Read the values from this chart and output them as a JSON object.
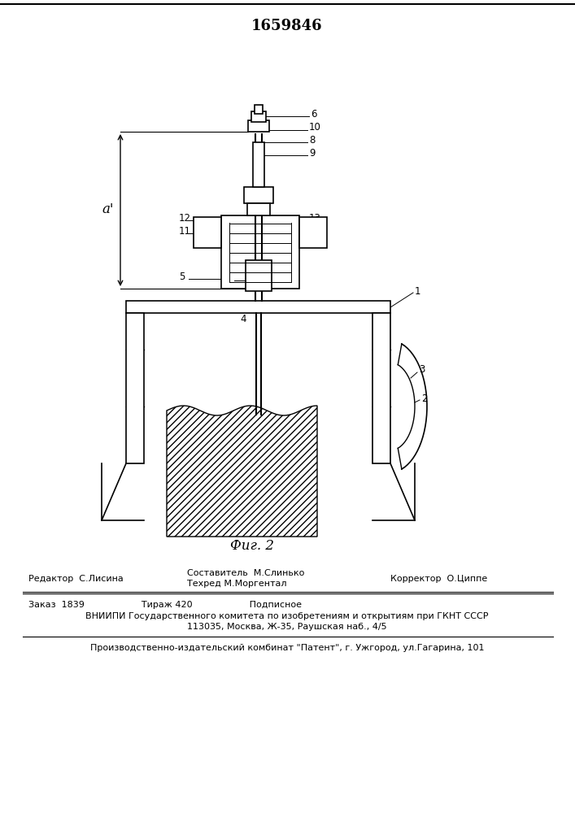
{
  "patent_number": "1659846",
  "fig_label": "Фиг. 2",
  "background_color": "#ffffff",
  "editor_line1": "Редактор  С.Лисина",
  "editor_line2": "Составитель  М.Слинько",
  "editor_line3": "Техред М.Моргентал",
  "editor_line4": "Корректор  О.Циппе",
  "footer_line1": "Заказ  1839                    Тираж 420                    Подписное",
  "footer_line2": "ВНИИПИ Государственного комитета по изобретениям и открытиям при ГКНТ СССР",
  "footer_line3": "113035, Москва, Ж-35, Раушская наб., 4/5",
  "footer_line4": "Производственно-издательский комбинат \"Патент\", г. Ужгород, ул.Гагарина, 101"
}
